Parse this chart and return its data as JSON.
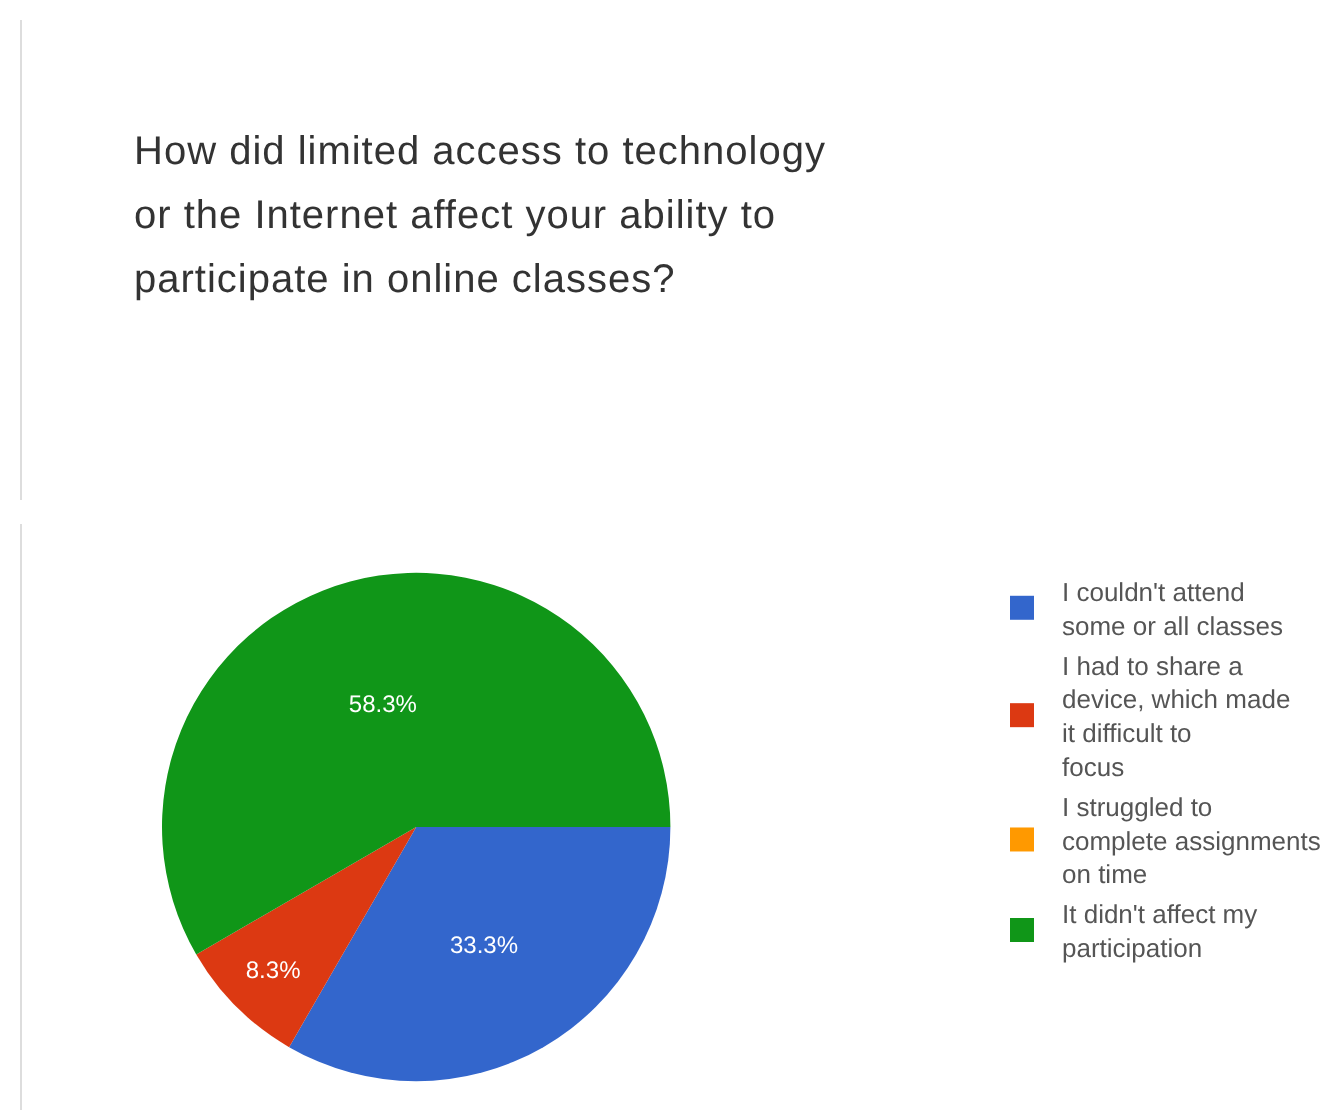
{
  "chart_data": {
    "type": "pie",
    "title": "How did limited access to technology or the Internet affect your ability to participate in online classes?",
    "categories": [
      "I couldn't attend some or all classes",
      "I had to share a device, which made it difficult to focus",
      "I struggled to complete assignments on time",
      "It didn't affect my participation"
    ],
    "values": [
      33.3,
      8.3,
      0,
      58.3
    ],
    "colors": [
      "#3366cc",
      "#dc3912",
      "#ff9900",
      "#109618"
    ],
    "value_labels": [
      "33.3%",
      "8.3%",
      null,
      "58.3%"
    ],
    "legend": "right"
  }
}
